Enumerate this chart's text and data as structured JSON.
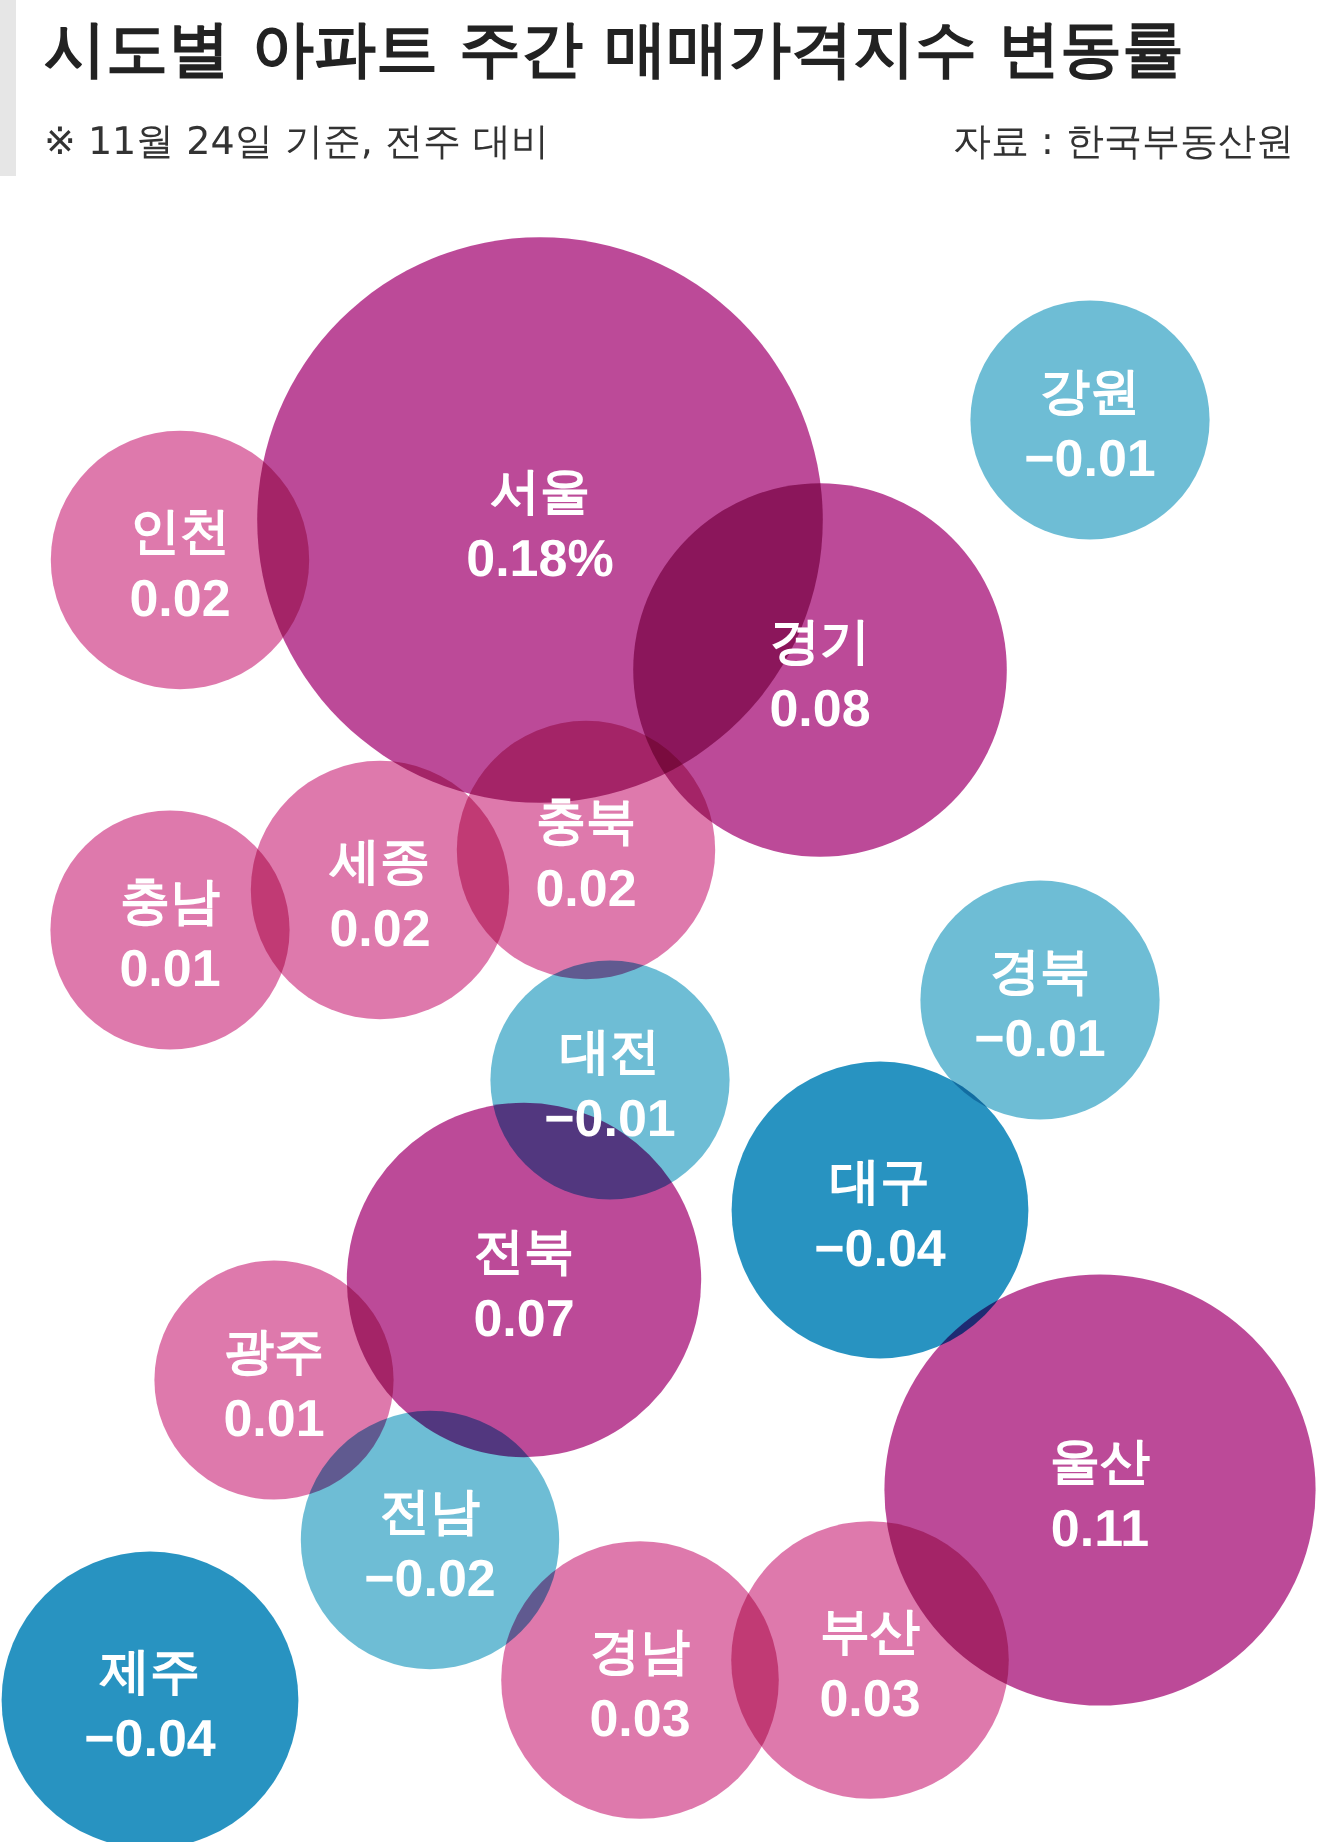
{
  "chart_data": {
    "type": "other",
    "title": "시도별 아파트 주간 매매가격지수 변동률",
    "subtitle": "※ 11월 24일 기준, 전주 대비",
    "annotations": [
      "자료 : 한국부동산원"
    ],
    "categories": [
      "서울",
      "인천",
      "강원",
      "경기",
      "충북",
      "세종",
      "충남",
      "경북",
      "대전",
      "대구",
      "전북",
      "광주",
      "울산",
      "전남",
      "제주",
      "경남",
      "부산"
    ],
    "values": [
      0.18,
      0.02,
      -0.01,
      0.08,
      0.02,
      0.02,
      0.01,
      -0.01,
      -0.01,
      -0.04,
      0.07,
      0.01,
      0.11,
      -0.02,
      -0.04,
      0.03,
      0.03
    ],
    "value_labels": [
      "0.18%",
      "0.02",
      "−0.01",
      "0.08",
      "0.02",
      "0.02",
      "0.01",
      "−0.01",
      "−0.01",
      "−0.04",
      "0.07",
      "0.01",
      "0.11",
      "−0.02",
      "−0.04",
      "0.03",
      "0.03"
    ],
    "colors": [
      "#b3318a",
      "#d966a0",
      "#5ab4cf",
      "#b3318a",
      "#d966a0",
      "#d966a0",
      "#d966a0",
      "#5ab4cf",
      "#5ab4cf",
      "#0a84b8",
      "#b3318a",
      "#d966a0",
      "#b3318a",
      "#5ab4cf",
      "#0a84b8",
      "#d966a0",
      "#d966a0"
    ],
    "data_labels": true
  }
}
